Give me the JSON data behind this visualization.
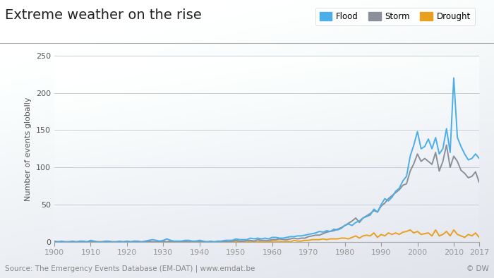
{
  "title": "Extreme weather on the rise",
  "ylabel": "Number of events globally",
  "source": "Source: The Emergency Events Database (EM-DAT) | www.emdat.be",
  "copyright": "© DW",
  "legend_labels": [
    "Flood",
    "Storm",
    "Drought"
  ],
  "colors": {
    "flood": "#4baee8",
    "storm": "#8a9099",
    "drought": "#e8a020"
  },
  "years": [
    1900,
    1901,
    1902,
    1903,
    1904,
    1905,
    1906,
    1907,
    1908,
    1909,
    1910,
    1911,
    1912,
    1913,
    1914,
    1915,
    1916,
    1917,
    1918,
    1919,
    1920,
    1921,
    1922,
    1923,
    1924,
    1925,
    1926,
    1927,
    1928,
    1929,
    1930,
    1931,
    1932,
    1933,
    1934,
    1935,
    1936,
    1937,
    1938,
    1939,
    1940,
    1941,
    1942,
    1943,
    1944,
    1945,
    1946,
    1947,
    1948,
    1949,
    1950,
    1951,
    1952,
    1953,
    1954,
    1955,
    1956,
    1957,
    1958,
    1959,
    1960,
    1961,
    1962,
    1963,
    1964,
    1965,
    1966,
    1967,
    1968,
    1969,
    1970,
    1971,
    1972,
    1973,
    1974,
    1975,
    1976,
    1977,
    1978,
    1979,
    1980,
    1981,
    1982,
    1983,
    1984,
    1985,
    1986,
    1987,
    1988,
    1989,
    1990,
    1991,
    1992,
    1993,
    1994,
    1995,
    1996,
    1997,
    1998,
    1999,
    2000,
    2001,
    2002,
    2003,
    2004,
    2005,
    2006,
    2007,
    2008,
    2009,
    2010,
    2011,
    2012,
    2013,
    2014,
    2015,
    2016,
    2017
  ],
  "flood": [
    1,
    0,
    1,
    0,
    0,
    1,
    0,
    1,
    1,
    0,
    2,
    1,
    0,
    0,
    1,
    1,
    0,
    0,
    1,
    0,
    1,
    0,
    1,
    1,
    0,
    1,
    2,
    3,
    2,
    1,
    2,
    4,
    2,
    1,
    1,
    1,
    2,
    2,
    1,
    1,
    2,
    1,
    0,
    1,
    0,
    1,
    1,
    2,
    2,
    2,
    4,
    3,
    3,
    3,
    5,
    4,
    5,
    4,
    5,
    4,
    6,
    6,
    5,
    5,
    6,
    7,
    7,
    8,
    8,
    9,
    10,
    11,
    12,
    14,
    13,
    15,
    14,
    17,
    16,
    18,
    22,
    24,
    22,
    26,
    28,
    32,
    34,
    36,
    44,
    40,
    50,
    58,
    55,
    60,
    68,
    72,
    82,
    88,
    115,
    130,
    148,
    125,
    128,
    138,
    125,
    140,
    118,
    125,
    152,
    120,
    220,
    140,
    128,
    118,
    110,
    112,
    118,
    112
  ],
  "storm": [
    0,
    0,
    0,
    0,
    0,
    0,
    0,
    0,
    0,
    0,
    0,
    0,
    0,
    0,
    0,
    0,
    0,
    0,
    0,
    0,
    1,
    0,
    1,
    0,
    0,
    0,
    1,
    0,
    0,
    0,
    1,
    0,
    1,
    0,
    0,
    0,
    1,
    0,
    0,
    0,
    0,
    0,
    0,
    0,
    0,
    0,
    0,
    1,
    0,
    1,
    2,
    1,
    1,
    2,
    2,
    1,
    3,
    2,
    2,
    2,
    3,
    3,
    4,
    3,
    3,
    4,
    5,
    4,
    5,
    5,
    7,
    8,
    9,
    9,
    11,
    13,
    14,
    15,
    17,
    19,
    22,
    25,
    28,
    32,
    26,
    32,
    35,
    38,
    42,
    40,
    48,
    52,
    58,
    62,
    66,
    70,
    76,
    78,
    95,
    105,
    118,
    108,
    112,
    108,
    104,
    120,
    95,
    108,
    130,
    100,
    115,
    108,
    96,
    92,
    86,
    88,
    94,
    80
  ],
  "drought": [
    0,
    0,
    0,
    0,
    0,
    0,
    0,
    0,
    0,
    0,
    0,
    0,
    0,
    0,
    0,
    0,
    0,
    0,
    0,
    0,
    0,
    0,
    0,
    0,
    0,
    0,
    0,
    0,
    0,
    0,
    0,
    0,
    0,
    0,
    0,
    0,
    1,
    0,
    0,
    0,
    2,
    0,
    0,
    0,
    0,
    0,
    0,
    0,
    0,
    0,
    1,
    0,
    0,
    1,
    0,
    1,
    0,
    1,
    0,
    0,
    1,
    1,
    1,
    0,
    1,
    0,
    2,
    1,
    1,
    2,
    2,
    3,
    3,
    3,
    4,
    3,
    4,
    4,
    4,
    5,
    5,
    4,
    6,
    8,
    5,
    8,
    9,
    8,
    12,
    6,
    10,
    8,
    12,
    10,
    12,
    10,
    13,
    14,
    16,
    12,
    14,
    10,
    11,
    12,
    8,
    16,
    8,
    10,
    14,
    8,
    16,
    10,
    8,
    6,
    10,
    8,
    12,
    6
  ],
  "ylim": [
    0,
    250
  ],
  "yticks": [
    0,
    50,
    100,
    150,
    200,
    250
  ],
  "xlim": [
    1900,
    2017
  ]
}
